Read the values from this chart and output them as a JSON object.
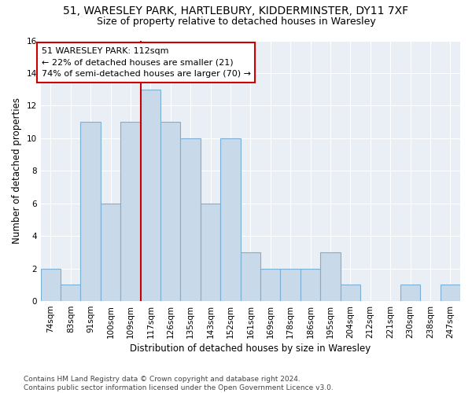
{
  "title_line1": "51, WARESLEY PARK, HARTLEBURY, KIDDERMINSTER, DY11 7XF",
  "title_line2": "Size of property relative to detached houses in Waresley",
  "xlabel": "Distribution of detached houses by size in Waresley",
  "ylabel": "Number of detached properties",
  "bar_labels": [
    "74sqm",
    "83sqm",
    "91sqm",
    "100sqm",
    "109sqm",
    "117sqm",
    "126sqm",
    "135sqm",
    "143sqm",
    "152sqm",
    "161sqm",
    "169sqm",
    "178sqm",
    "186sqm",
    "195sqm",
    "204sqm",
    "212sqm",
    "221sqm",
    "230sqm",
    "238sqm",
    "247sqm"
  ],
  "bar_values": [
    2,
    1,
    11,
    6,
    11,
    13,
    11,
    10,
    6,
    10,
    3,
    2,
    2,
    2,
    3,
    1,
    0,
    0,
    1,
    0,
    1
  ],
  "bar_color": "#c8d9ea",
  "bar_edge_color": "#7bafd4",
  "property_line_x": 4.5,
  "annotation_label": "51 WARESLEY PARK: 112sqm",
  "annotation_line1": "← 22% of detached houses are smaller (21)",
  "annotation_line2": "74% of semi-detached houses are larger (70) →",
  "annotation_box_color": "#ffffff",
  "annotation_box_edge_color": "#cc0000",
  "vline_color": "#cc0000",
  "ylim": [
    0,
    16
  ],
  "yticks": [
    0,
    2,
    4,
    6,
    8,
    10,
    12,
    14,
    16
  ],
  "footnote": "Contains HM Land Registry data © Crown copyright and database right 2024.\nContains public sector information licensed under the Open Government Licence v3.0.",
  "bg_color": "#ffffff",
  "plot_bg_color": "#eaeff5",
  "grid_color": "#ffffff",
  "title_fontsize": 10,
  "subtitle_fontsize": 9,
  "axis_label_fontsize": 8.5,
  "tick_fontsize": 7.5,
  "annotation_fontsize": 8,
  "footnote_fontsize": 6.5
}
